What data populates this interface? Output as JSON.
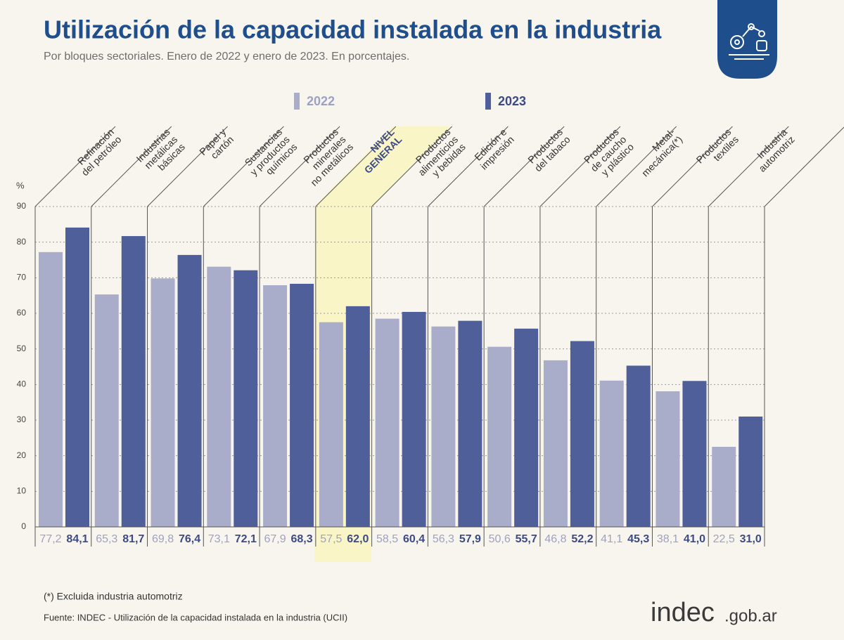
{
  "chart_data": {
    "type": "bar",
    "title": "Utilización de la capacidad instalada en la industria",
    "subtitle": "Por bloques sectoriales. Enero de 2022 y enero de 2023. En porcentajes.",
    "y_label": "%",
    "categories": [
      "Refinación\ndel petróleo",
      "Industrias\nmetálicas\nbásicas",
      "Papel y\ncartón",
      "Sustancias\ny productos\nquímicos",
      "Productos\nminerales\nno metálicos",
      "NIVEL\nGENERAL",
      "Productos\nalimenticios\ny bebidas",
      "Edición e\nimpresión",
      "Productos\ndel tabaco",
      "Productos\nde caucho\ny plástico",
      "Metal-\nmecánica(*)",
      "Productos\ntextiles",
      "Industria\nautomotriz"
    ],
    "highlight": 5,
    "series": [
      {
        "name": "2022",
        "color": "#a9adc9",
        "label_color": "#9da2c0",
        "values": [
          77.2,
          65.3,
          69.8,
          73.1,
          67.9,
          57.5,
          58.5,
          56.3,
          50.6,
          46.8,
          41.1,
          38.1,
          22.5
        ],
        "value_labels": [
          "77,2",
          "65,3",
          "69,8",
          "73,1",
          "67,9",
          "57,5",
          "58,5",
          "56,3",
          "50,6",
          "46,8",
          "41,1",
          "38,1",
          "22,5"
        ]
      },
      {
        "name": "2023",
        "color": "#4f5f9a",
        "label_color": "#3c4b86",
        "values": [
          84.1,
          81.7,
          76.4,
          72.1,
          68.3,
          62.0,
          60.4,
          57.9,
          55.7,
          52.2,
          45.3,
          41.0,
          31.0
        ],
        "value_labels": [
          "84,1",
          "81,7",
          "76,4",
          "72,1",
          "68,3",
          "62,0",
          "60,4",
          "57,9",
          "55,7",
          "52,2",
          "45,3",
          "41,0",
          "31,0"
        ]
      }
    ],
    "ylim": [
      0,
      90
    ],
    "yticks": [
      0,
      10,
      20,
      30,
      40,
      50,
      60,
      70,
      80,
      90
    ],
    "grid": true,
    "footnote": "(*) Excluida industria automotriz",
    "source": "Fuente: INDEC - Utilización de la capacidad instalada en la industria (UCII)"
  },
  "brand": {
    "name": "indec",
    "domain": ".gob.ar"
  }
}
